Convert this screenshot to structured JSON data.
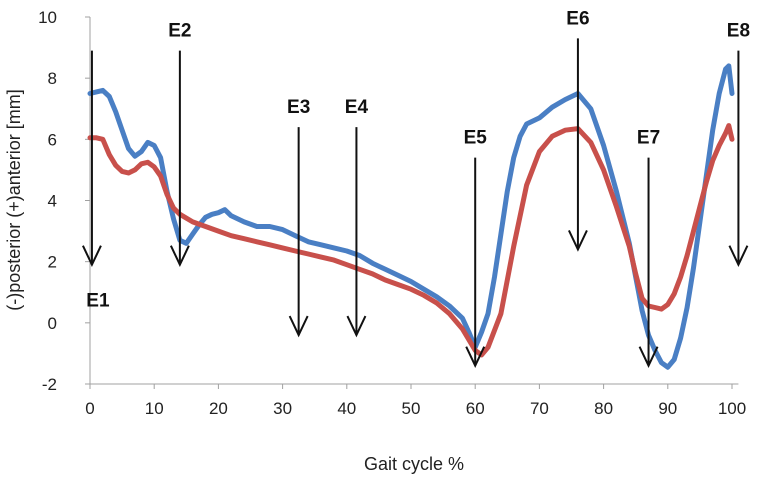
{
  "chart_data": {
    "type": "line",
    "title": "",
    "xlabel": "Gait cycle %",
    "ylabel": "(-)posterior (+)anterior [mm]",
    "xlim": [
      0,
      101
    ],
    "ylim": [
      -2,
      10
    ],
    "xticks": [
      0,
      10,
      20,
      30,
      40,
      50,
      60,
      70,
      80,
      90,
      100
    ],
    "yticks": [
      -2,
      0,
      2,
      4,
      6,
      8,
      10
    ],
    "grid": false,
    "colors": {
      "blue": "#4a7fc4",
      "red": "#c8504b",
      "axis": "#a0a0a0",
      "arrow": "#111111"
    },
    "series": [
      {
        "color_key": "blue",
        "points": [
          [
            0,
            7.5
          ],
          [
            1,
            7.55
          ],
          [
            2,
            7.6
          ],
          [
            3,
            7.4
          ],
          [
            4,
            6.9
          ],
          [
            5,
            6.3
          ],
          [
            6,
            5.7
          ],
          [
            7,
            5.45
          ],
          [
            8,
            5.6
          ],
          [
            9,
            5.9
          ],
          [
            10,
            5.8
          ],
          [
            11,
            5.4
          ],
          [
            12,
            4.3
          ],
          [
            13,
            3.4
          ],
          [
            14,
            2.7
          ],
          [
            15,
            2.6
          ],
          [
            16,
            2.9
          ],
          [
            17,
            3.2
          ],
          [
            18,
            3.45
          ],
          [
            19,
            3.55
          ],
          [
            20,
            3.6
          ],
          [
            21,
            3.7
          ],
          [
            22,
            3.5
          ],
          [
            24,
            3.3
          ],
          [
            26,
            3.15
          ],
          [
            28,
            3.15
          ],
          [
            30,
            3.05
          ],
          [
            32,
            2.85
          ],
          [
            34,
            2.65
          ],
          [
            36,
            2.55
          ],
          [
            38,
            2.45
          ],
          [
            40,
            2.35
          ],
          [
            42,
            2.2
          ],
          [
            44,
            1.95
          ],
          [
            46,
            1.75
          ],
          [
            48,
            1.55
          ],
          [
            50,
            1.35
          ],
          [
            52,
            1.1
          ],
          [
            54,
            0.85
          ],
          [
            56,
            0.55
          ],
          [
            58,
            0.15
          ],
          [
            59,
            -0.3
          ],
          [
            60,
            -0.8
          ],
          [
            61,
            -0.3
          ],
          [
            62,
            0.3
          ],
          [
            63,
            1.5
          ],
          [
            64,
            2.9
          ],
          [
            65,
            4.3
          ],
          [
            66,
            5.4
          ],
          [
            67,
            6.1
          ],
          [
            68,
            6.5
          ],
          [
            70,
            6.7
          ],
          [
            72,
            7.05
          ],
          [
            74,
            7.3
          ],
          [
            76,
            7.5
          ],
          [
            78,
            7.0
          ],
          [
            80,
            5.8
          ],
          [
            82,
            4.3
          ],
          [
            84,
            2.6
          ],
          [
            85,
            1.5
          ],
          [
            86,
            0.4
          ],
          [
            87,
            -0.4
          ],
          [
            88,
            -0.9
          ],
          [
            89,
            -1.3
          ],
          [
            90,
            -1.45
          ],
          [
            91,
            -1.2
          ],
          [
            92,
            -0.5
          ],
          [
            93,
            0.5
          ],
          [
            94,
            1.8
          ],
          [
            95,
            3.3
          ],
          [
            96,
            4.8
          ],
          [
            97,
            6.3
          ],
          [
            98,
            7.5
          ],
          [
            99,
            8.3
          ],
          [
            99.5,
            8.4
          ],
          [
            100,
            7.5
          ]
        ]
      },
      {
        "color_key": "red",
        "points": [
          [
            0,
            6.05
          ],
          [
            1,
            6.05
          ],
          [
            2,
            6.0
          ],
          [
            3,
            5.5
          ],
          [
            4,
            5.15
          ],
          [
            5,
            4.95
          ],
          [
            6,
            4.9
          ],
          [
            7,
            5.0
          ],
          [
            8,
            5.2
          ],
          [
            9,
            5.25
          ],
          [
            10,
            5.1
          ],
          [
            11,
            4.8
          ],
          [
            12,
            4.2
          ],
          [
            13,
            3.75
          ],
          [
            14,
            3.55
          ],
          [
            16,
            3.3
          ],
          [
            18,
            3.15
          ],
          [
            20,
            3.0
          ],
          [
            22,
            2.85
          ],
          [
            24,
            2.75
          ],
          [
            26,
            2.65
          ],
          [
            28,
            2.55
          ],
          [
            30,
            2.45
          ],
          [
            32,
            2.35
          ],
          [
            34,
            2.25
          ],
          [
            36,
            2.15
          ],
          [
            38,
            2.05
          ],
          [
            40,
            1.9
          ],
          [
            42,
            1.75
          ],
          [
            44,
            1.6
          ],
          [
            46,
            1.4
          ],
          [
            48,
            1.25
          ],
          [
            50,
            1.1
          ],
          [
            52,
            0.9
          ],
          [
            54,
            0.65
          ],
          [
            56,
            0.3
          ],
          [
            58,
            -0.2
          ],
          [
            60,
            -0.9
          ],
          [
            61,
            -1.05
          ],
          [
            62,
            -0.8
          ],
          [
            64,
            0.3
          ],
          [
            66,
            2.5
          ],
          [
            68,
            4.5
          ],
          [
            70,
            5.6
          ],
          [
            72,
            6.1
          ],
          [
            74,
            6.3
          ],
          [
            76,
            6.35
          ],
          [
            78,
            5.9
          ],
          [
            80,
            5.0
          ],
          [
            82,
            3.8
          ],
          [
            84,
            2.5
          ],
          [
            85,
            1.6
          ],
          [
            86,
            0.8
          ],
          [
            87,
            0.55
          ],
          [
            88,
            0.5
          ],
          [
            89,
            0.45
          ],
          [
            90,
            0.6
          ],
          [
            91,
            0.95
          ],
          [
            92,
            1.5
          ],
          [
            93,
            2.2
          ],
          [
            94,
            3.0
          ],
          [
            95,
            3.8
          ],
          [
            96,
            4.6
          ],
          [
            97,
            5.3
          ],
          [
            98,
            5.8
          ],
          [
            99,
            6.2
          ],
          [
            99.5,
            6.45
          ],
          [
            100,
            6.0
          ]
        ]
      }
    ],
    "events": [
      {
        "label": "E1",
        "x": 0.3,
        "y_top": 8.9,
        "y_tip": 1.9,
        "label_pos": "below"
      },
      {
        "label": "E2",
        "x": 14,
        "y_top": 8.9,
        "y_tip": 1.9,
        "label_pos": "above"
      },
      {
        "label": "E3",
        "x": 32.5,
        "y_top": 6.4,
        "y_tip": -0.4,
        "label_pos": "above"
      },
      {
        "label": "E4",
        "x": 41.5,
        "y_top": 6.4,
        "y_tip": -0.4,
        "label_pos": "above"
      },
      {
        "label": "E5",
        "x": 60,
        "y_top": 5.4,
        "y_tip": -1.4,
        "label_pos": "above"
      },
      {
        "label": "E6",
        "x": 76,
        "y_top": 9.3,
        "y_tip": 2.4,
        "label_pos": "above"
      },
      {
        "label": "E7",
        "x": 87,
        "y_top": 5.4,
        "y_tip": -1.4,
        "label_pos": "above"
      },
      {
        "label": "E8",
        "x": 101,
        "y_top": 8.9,
        "y_tip": 1.9,
        "label_pos": "above"
      }
    ]
  }
}
